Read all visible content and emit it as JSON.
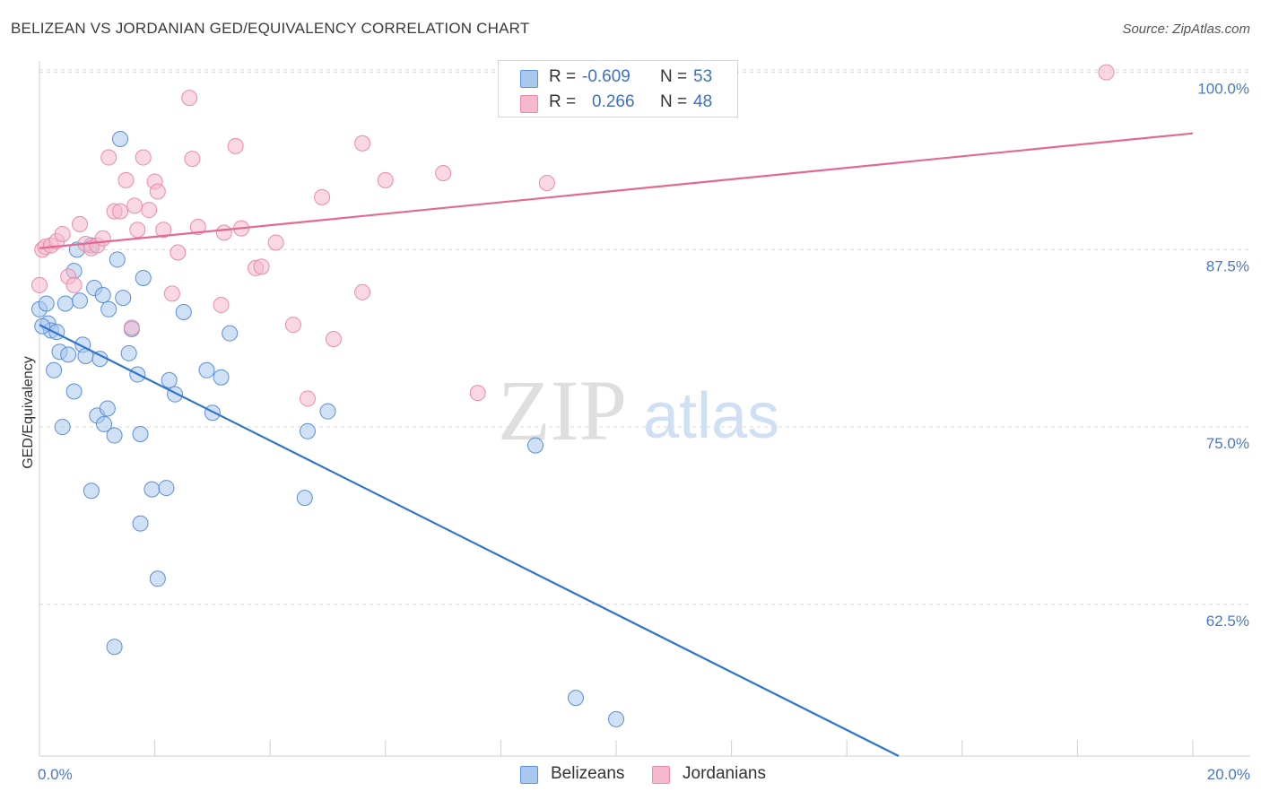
{
  "title": "BELIZEAN VS JORDANIAN GED/EQUIVALENCY CORRELATION CHART",
  "source": "Source: ZipAtlas.com",
  "watermark": {
    "zip": "ZIP",
    "atlas": "atlas"
  },
  "legend_top": {
    "rows": [
      {
        "r_label": "R =",
        "r_value": "-0.609",
        "n_label": "N =",
        "n_value": "53",
        "color": "#a9c8ee"
      },
      {
        "r_label": "R =",
        "r_value": "0.266",
        "n_label": "N =",
        "n_value": "48",
        "color": "#f5b8cc"
      }
    ]
  },
  "legend_bottom": [
    {
      "label": "Belizeans",
      "color": "#a9c8ee"
    },
    {
      "label": "Jordanians",
      "color": "#f5b8cc"
    }
  ],
  "chart_data": {
    "type": "scatter",
    "title": "BELIZEAN VS JORDANIAN GED/EQUIVALENCY CORRELATION CHART",
    "xlabel": "",
    "ylabel": "GED/Equivalency",
    "xlim": [
      0,
      20
    ],
    "ylim": [
      51.8,
      100.8
    ],
    "x_tick_labels": [
      {
        "value": 0,
        "label": "0.0%"
      },
      {
        "value": 20,
        "label": "20.0%"
      }
    ],
    "x_minor_ticks": [
      2,
      4,
      6,
      8,
      10,
      12,
      14,
      16,
      18,
      20
    ],
    "y_ticks": [
      {
        "value": 100,
        "label": "100.0%"
      },
      {
        "value": 87.5,
        "label": "87.5%"
      },
      {
        "value": 75,
        "label": "75.0%"
      },
      {
        "value": 62.5,
        "label": "62.5%"
      }
    ],
    "grid": true,
    "series": [
      {
        "name": "Belizeans",
        "color": "#a9c8ee",
        "stroke": "#5b8fd8",
        "trend": {
          "x": [
            0,
            14.9
          ],
          "y": [
            82.2,
            51.8
          ],
          "color": "#2f74d0"
        },
        "points": [
          [
            0.0,
            83.3
          ],
          [
            0.12,
            83.7
          ],
          [
            0.15,
            82.3
          ],
          [
            0.2,
            81.8
          ],
          [
            0.25,
            79.0
          ],
          [
            0.3,
            81.7
          ],
          [
            0.35,
            80.3
          ],
          [
            0.4,
            75.0
          ],
          [
            0.45,
            83.7
          ],
          [
            0.5,
            80.1
          ],
          [
            0.6,
            86.0
          ],
          [
            0.6,
            77.5
          ],
          [
            0.65,
            87.5
          ],
          [
            0.7,
            83.9
          ],
          [
            0.75,
            80.8
          ],
          [
            0.8,
            80.0
          ],
          [
            0.9,
            87.8
          ],
          [
            0.9,
            70.5
          ],
          [
            0.95,
            84.8
          ],
          [
            1.0,
            75.8
          ],
          [
            1.05,
            79.8
          ],
          [
            1.1,
            84.3
          ],
          [
            1.12,
            75.2
          ],
          [
            1.18,
            76.3
          ],
          [
            1.2,
            83.3
          ],
          [
            1.3,
            74.4
          ],
          [
            1.35,
            86.8
          ],
          [
            1.4,
            95.3
          ],
          [
            1.45,
            84.1
          ],
          [
            1.55,
            80.2
          ],
          [
            1.6,
            81.9
          ],
          [
            1.7,
            78.7
          ],
          [
            1.75,
            74.5
          ],
          [
            1.75,
            68.2
          ],
          [
            1.8,
            85.5
          ],
          [
            1.95,
            70.6
          ],
          [
            2.05,
            64.3
          ],
          [
            2.2,
            70.7
          ],
          [
            2.25,
            78.3
          ],
          [
            2.35,
            77.3
          ],
          [
            2.5,
            83.1
          ],
          [
            2.9,
            79.0
          ],
          [
            3.0,
            76.0
          ],
          [
            3.15,
            78.5
          ],
          [
            3.3,
            81.6
          ],
          [
            4.6,
            70.0
          ],
          [
            4.65,
            74.7
          ],
          [
            5.0,
            76.1
          ],
          [
            1.3,
            59.5
          ],
          [
            8.6,
            73.7
          ],
          [
            9.3,
            55.9
          ],
          [
            10.0,
            54.4
          ],
          [
            0.05,
            82.1
          ]
        ]
      },
      {
        "name": "Jordanians",
        "color": "#f5b8cc",
        "stroke": "#e88cab",
        "trend": {
          "x": [
            0,
            20
          ],
          "y": [
            87.6,
            95.7
          ],
          "color": "#e06a93"
        },
        "points": [
          [
            0.0,
            85.0
          ],
          [
            0.05,
            87.5
          ],
          [
            0.1,
            87.7
          ],
          [
            0.2,
            87.8
          ],
          [
            0.3,
            88.1
          ],
          [
            0.4,
            88.6
          ],
          [
            0.5,
            85.6
          ],
          [
            0.6,
            85.0
          ],
          [
            0.7,
            89.3
          ],
          [
            0.8,
            87.9
          ],
          [
            0.9,
            87.6
          ],
          [
            1.0,
            87.8
          ],
          [
            1.1,
            88.3
          ],
          [
            1.2,
            94.0
          ],
          [
            1.3,
            90.2
          ],
          [
            1.4,
            90.2
          ],
          [
            1.5,
            92.4
          ],
          [
            1.6,
            82.0
          ],
          [
            1.65,
            90.6
          ],
          [
            1.7,
            88.9
          ],
          [
            1.8,
            94.0
          ],
          [
            1.9,
            90.3
          ],
          [
            2.0,
            92.3
          ],
          [
            2.05,
            91.6
          ],
          [
            2.15,
            88.9
          ],
          [
            2.3,
            84.4
          ],
          [
            2.4,
            87.3
          ],
          [
            2.6,
            98.2
          ],
          [
            2.65,
            93.9
          ],
          [
            2.75,
            89.1
          ],
          [
            3.15,
            83.6
          ],
          [
            3.2,
            88.7
          ],
          [
            3.4,
            94.8
          ],
          [
            3.5,
            89.0
          ],
          [
            3.75,
            86.2
          ],
          [
            3.85,
            86.3
          ],
          [
            4.1,
            88.0
          ],
          [
            4.4,
            82.2
          ],
          [
            4.65,
            77.0
          ],
          [
            4.9,
            91.2
          ],
          [
            5.1,
            81.2
          ],
          [
            5.6,
            95.0
          ],
          [
            5.6,
            84.5
          ],
          [
            6.0,
            92.4
          ],
          [
            7.0,
            92.9
          ],
          [
            7.6,
            77.4
          ],
          [
            8.8,
            92.2
          ],
          [
            18.5,
            100.0
          ]
        ]
      }
    ]
  }
}
